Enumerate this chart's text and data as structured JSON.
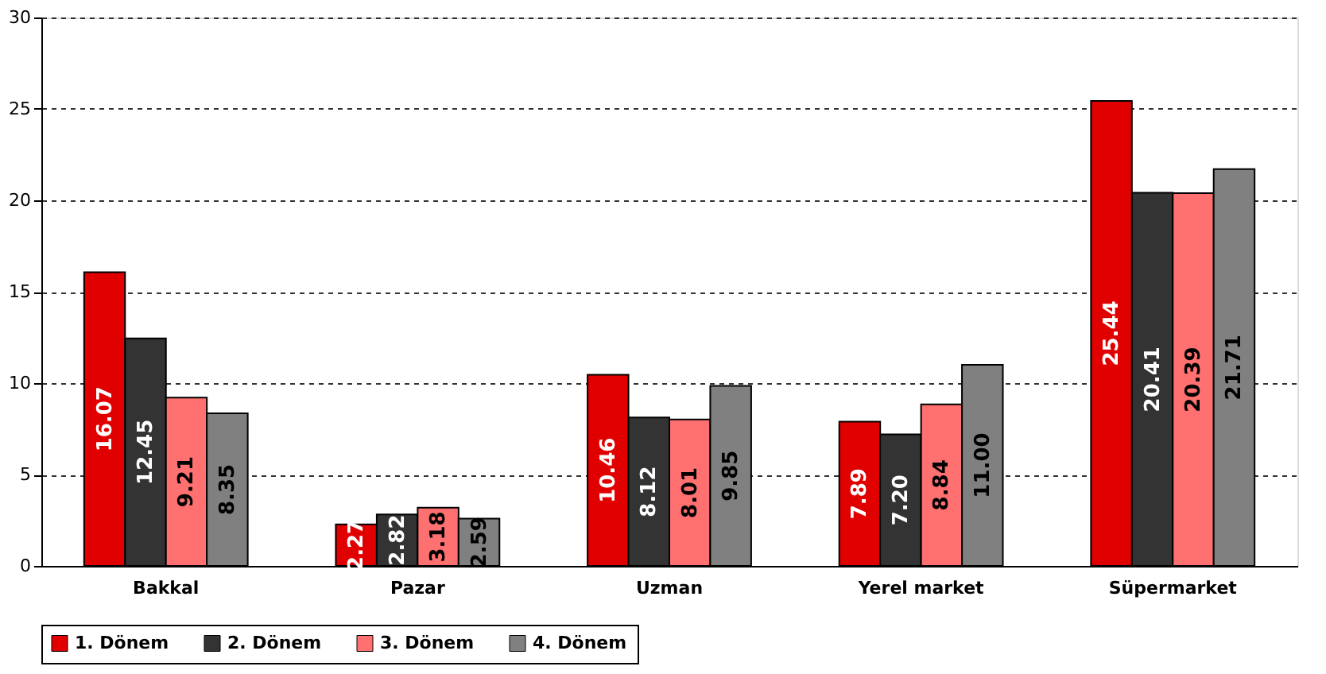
{
  "chart_data": {
    "type": "bar",
    "categories": [
      "Bakkal",
      "Pazar",
      "Uzman",
      "Yerel market",
      "Süpermarket"
    ],
    "series": [
      {
        "name": "1. Dönem",
        "color": "#e00000",
        "values": [
          16.07,
          2.27,
          10.46,
          7.89,
          25.44
        ],
        "value_labels": [
          "16.07",
          "2.27",
          "10.46",
          "7.89",
          "25.44"
        ]
      },
      {
        "name": "2. Dönem",
        "color": "#333333",
        "values": [
          12.45,
          2.82,
          8.12,
          7.2,
          20.41
        ],
        "value_labels": [
          "12.45",
          "2.82",
          "8.12",
          "7.20",
          "20.41"
        ]
      },
      {
        "name": "3. Dönem",
        "color": "#ff7070",
        "values": [
          9.21,
          3.18,
          8.01,
          8.84,
          20.39
        ],
        "value_labels": [
          "9.21",
          "3.18",
          "8.01",
          "8.84",
          "20.39"
        ]
      },
      {
        "name": "4. Dönem",
        "color": "#808080",
        "values": [
          8.35,
          2.59,
          9.85,
          11.0,
          21.71
        ],
        "value_labels": [
          "8.35",
          "2.59",
          "9.85",
          "11.00",
          "21.71"
        ]
      }
    ],
    "ylim": [
      0,
      30
    ],
    "yticks": [
      0,
      5,
      10,
      15,
      20,
      25,
      30
    ],
    "grid": "y",
    "legend": "bottom"
  }
}
